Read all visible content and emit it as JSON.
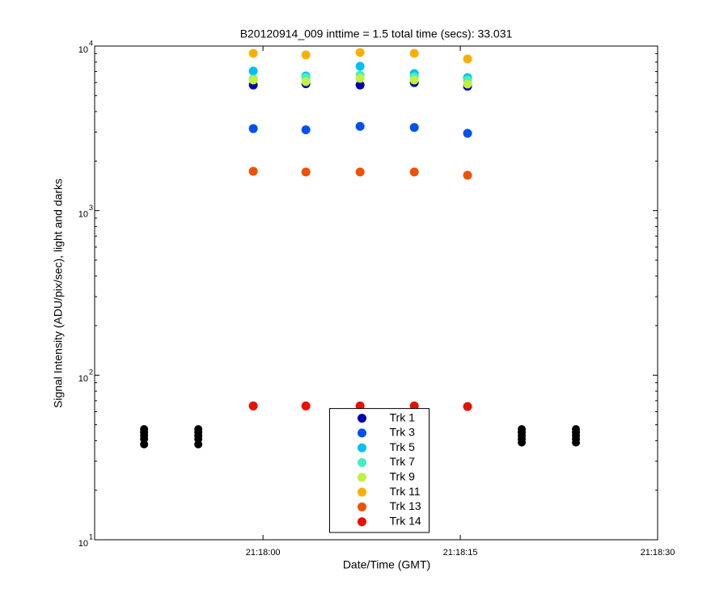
{
  "chart_data": {
    "type": "scatter",
    "title": "B20120914_009 inttime = 1.5 total time (secs): 33.031",
    "x_label": "Date/Time (GMT)",
    "y_label": "Signal Intensity (ADU/pix/sec), light and darks",
    "log_y": true,
    "legend": "bottom",
    "xlim": [
      76667.2,
      76710
    ],
    "xticks": [
      {
        "value": 76680,
        "label": "21:18:00"
      },
      {
        "value": 76695,
        "label": "21:18:15"
      },
      {
        "value": 76710,
        "label": "21:18:30"
      }
    ],
    "ylim": [
      10,
      10000
    ],
    "yticks": [
      {
        "value": 10,
        "label": "10",
        "exponent": "1"
      },
      {
        "value": 100,
        "label": "10",
        "exponent": "2"
      },
      {
        "value": 1000,
        "label": "10",
        "exponent": "3"
      },
      {
        "value": 10000,
        "label": "10",
        "exponent": "4"
      }
    ],
    "x": [
      76679.26,
      76683.26,
      76687.38,
      76691.5,
      76695.55
    ],
    "series": [
      {
        "name": "Trk 1",
        "color": "#0000b0",
        "values": [
          5800,
          5900,
          5800,
          6000,
          5700
        ]
      },
      {
        "name": "Trk 3",
        "color": "#0050f0",
        "values": [
          3150,
          3100,
          3250,
          3200,
          2950
        ]
      },
      {
        "name": "Trk 5",
        "color": "#00c0f0",
        "values": [
          7050,
          6580,
          7540,
          6810,
          6430
        ]
      },
      {
        "name": "Trk 7",
        "color": "#40f0c0",
        "values": [
          6300,
          6430,
          6660,
          6500,
          6220
        ]
      },
      {
        "name": "Trk 9",
        "color": "#c0f040",
        "values": [
          6220,
          6080,
          6360,
          6220,
          5880
        ]
      },
      {
        "name": "Trk 11",
        "color": "#f8b000",
        "values": [
          9030,
          8830,
          9140,
          9030,
          8350
        ]
      },
      {
        "name": "Trk 13",
        "color": "#f05000",
        "values": [
          1734,
          1717,
          1717,
          1717,
          1640
        ]
      },
      {
        "name": "Trk 14",
        "color": "#e81000",
        "values": [
          65,
          65,
          65,
          65,
          64.5
        ]
      }
    ],
    "darks": {
      "color": "#000000",
      "x": [
        76670.96,
        76670.96,
        76670.96,
        76670.96,
        76670.96,
        76675.08,
        76675.08,
        76675.08,
        76675.08,
        76675.08,
        76699.67,
        76699.67,
        76699.67,
        76699.67,
        76699.67,
        76703.79,
        76703.79,
        76703.79,
        76703.79,
        76703.79
      ],
      "values": [
        47,
        45,
        43,
        41,
        38,
        47,
        45,
        43,
        41,
        38,
        47,
        45,
        43,
        41,
        39,
        47,
        45,
        43,
        41,
        39
      ]
    }
  }
}
